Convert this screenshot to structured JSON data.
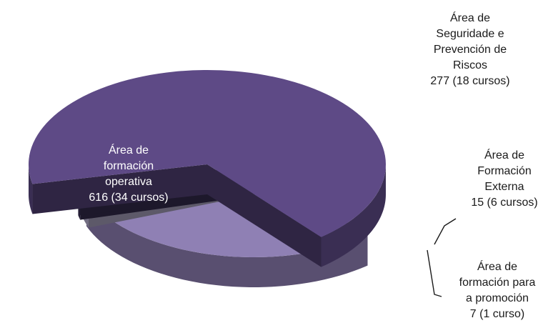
{
  "chart_data": {
    "type": "pie",
    "style": "3d-exploded",
    "slices": [
      {
        "label": [
          "Área de",
          "formación",
          "operativa",
          "616 (34 cursos)"
        ],
        "value": 616,
        "courses": 34,
        "color": "#5e4a86"
      },
      {
        "label": [
          "Área de",
          "Seguridade e",
          "Prevención de",
          "Riscos",
          "277 (18 cursos)"
        ],
        "value": 277,
        "courses": 18,
        "color": "#8f80b4"
      },
      {
        "label": [
          "Área de",
          "Formación",
          "Externa",
          "15 (6 cursos)"
        ],
        "value": 15,
        "courses": 6,
        "color": "#b9b2d2"
      },
      {
        "label": [
          "Área de",
          "formación para",
          "a promoción",
          "7 (1 curso)"
        ],
        "value": 7,
        "courses": 1,
        "color": "#3a2f55"
      }
    ]
  }
}
